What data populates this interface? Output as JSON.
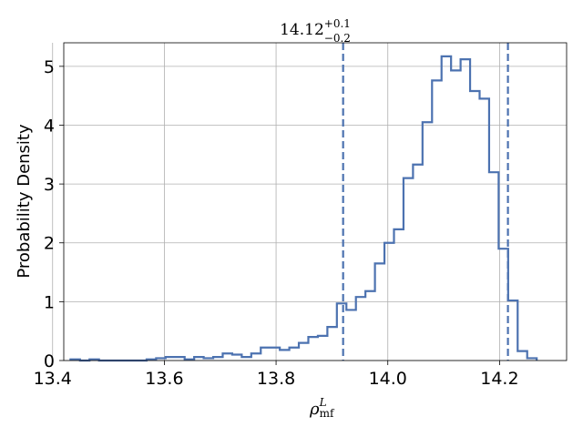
{
  "chart_data": {
    "type": "histogram",
    "title": {
      "base": "14.12",
      "sup": "+0.1",
      "sub": "−0.2"
    },
    "xlabel": {
      "base": "ρ",
      "sup": "L",
      "sub": "mf"
    },
    "ylabel": "Probability Density",
    "xlim": [
      13.42,
      14.32
    ],
    "ylim": [
      0,
      5.4
    ],
    "x_ticks": [
      13.4,
      13.6,
      13.8,
      14.0,
      14.2
    ],
    "x_tick_labels": [
      "13.4",
      "13.6",
      "13.8",
      "14.0",
      "14.2"
    ],
    "y_ticks": [
      0,
      1,
      2,
      3,
      4,
      5
    ],
    "y_tick_labels": [
      "0",
      "1",
      "2",
      "3",
      "4",
      "5"
    ],
    "grid": true,
    "line_color": "#4c72b0",
    "bin_start": 13.432,
    "bin_width": 0.01703,
    "values": [
      0.02,
      0.0,
      0.02,
      0.0,
      0.0,
      0.0,
      0.0,
      0.0,
      0.02,
      0.04,
      0.06,
      0.06,
      0.02,
      0.06,
      0.04,
      0.06,
      0.12,
      0.1,
      0.06,
      0.12,
      0.22,
      0.22,
      0.18,
      0.22,
      0.3,
      0.4,
      0.42,
      0.57,
      0.97,
      0.86,
      1.08,
      1.18,
      1.65,
      2.0,
      2.23,
      3.1,
      3.33,
      4.05,
      4.76,
      5.17,
      4.93,
      5.12,
      4.58,
      4.45,
      3.2,
      1.9,
      1.02,
      0.16,
      0.04
    ],
    "vlines": [
      13.92,
      14.215
    ]
  }
}
